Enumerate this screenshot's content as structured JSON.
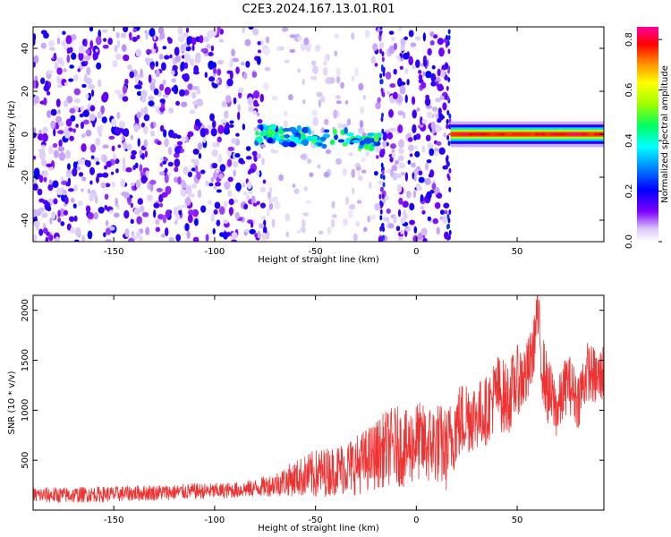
{
  "title": "C2E3.2024.167.13.01.R01",
  "chart_data": [
    {
      "type": "heatmap",
      "xlabel": "Height of straight line (km)",
      "ylabel": "Frequency (Hz)",
      "xlim": [
        -190,
        93
      ],
      "ylim": [
        -50,
        50
      ],
      "xticks": [
        -150,
        -100,
        -50,
        0,
        50
      ],
      "yticks": [
        -40,
        -20,
        0,
        20,
        40
      ],
      "colorbar": {
        "label": "Normalized spectral amplitude",
        "range": [
          0.0,
          0.85
        ],
        "ticks": [
          0.0,
          0.2,
          0.4,
          0.6,
          0.8
        ],
        "colormap": "rainbow (white-violet-blue-cyan-green-yellow-red-magenta)"
      },
      "grid": false,
      "features": {
        "broadband_noise_x": [
          -190,
          15
        ],
        "sparse_region_x": [
          -75,
          -20
        ],
        "narrowband_trace_x": [
          -80,
          -18
        ],
        "narrowband_trace_freq_hz": [
          0,
          -3
        ],
        "steady_line_x": [
          17,
          93
        ],
        "steady_line_freq_hz": 0,
        "steady_line_peak_amplitude": 0.85
      }
    },
    {
      "type": "line",
      "xlabel": "Height of straight line (km)",
      "ylabel": "SNR (10 * v/v)",
      "xlim": [
        -190,
        93
      ],
      "ylim": [
        0,
        2150
      ],
      "xticks": [
        -150,
        -100,
        -50,
        0,
        50
      ],
      "yticks": [
        500,
        1000,
        1500,
        2000
      ],
      "grid": false,
      "series": [
        {
          "color": "#ee3333",
          "x": [
            -190,
            -180,
            -170,
            -160,
            -150,
            -140,
            -130,
            -120,
            -110,
            -100,
            -90,
            -80,
            -70,
            -60,
            -50,
            -45,
            -40,
            -35,
            -30,
            -25,
            -20,
            -15,
            -10,
            -5,
            0,
            5,
            10,
            15,
            20,
            25,
            30,
            35,
            40,
            45,
            50,
            55,
            58,
            60,
            62,
            65,
            70,
            75,
            80,
            85,
            90,
            93
          ],
          "values": [
            150,
            150,
            150,
            160,
            160,
            170,
            175,
            180,
            190,
            190,
            200,
            220,
            260,
            320,
            360,
            380,
            400,
            430,
            450,
            500,
            550,
            620,
            650,
            600,
            700,
            650,
            680,
            600,
            850,
            950,
            950,
            1000,
            1200,
            1100,
            1300,
            1350,
            1600,
            2000,
            1500,
            1200,
            1000,
            1300,
            1100,
            1400,
            1300,
            1400
          ],
          "noise_amplitude": [
            80,
            80,
            80,
            80,
            80,
            80,
            80,
            80,
            80,
            80,
            80,
            90,
            120,
            180,
            250,
            250,
            250,
            280,
            300,
            320,
            350,
            380,
            400,
            400,
            400,
            400,
            420,
            420,
            400,
            400,
            350,
            350,
            380,
            380,
            350,
            350,
            300,
            300,
            350,
            350,
            300,
            300,
            300,
            300,
            300,
            300
          ]
        }
      ]
    }
  ]
}
